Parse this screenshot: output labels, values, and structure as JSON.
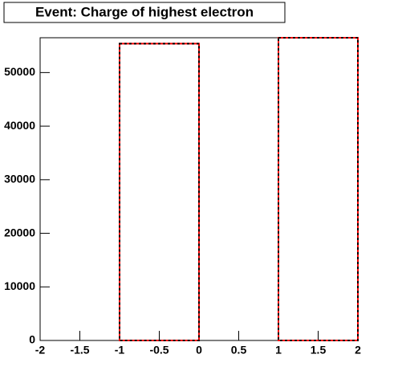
{
  "chart_data": {
    "type": "histogram",
    "title": "Event: Charge of highest electron",
    "bins": [
      -2,
      -1,
      0,
      1,
      2
    ],
    "series": [
      {
        "color": "#ff0000",
        "dash": false,
        "values": [
          0,
          55400,
          0,
          56500
        ]
      },
      {
        "color": "#000000",
        "dash": true,
        "values": [
          0,
          55400,
          0,
          56500
        ]
      }
    ],
    "xlim": [
      -2,
      2
    ],
    "xticks": [
      -2,
      -1.5,
      -1,
      -0.5,
      0,
      0.5,
      1,
      1.5,
      2
    ],
    "ylim": [
      0,
      56500
    ],
    "yticks": [
      0,
      10000,
      20000,
      30000,
      40000,
      50000
    ]
  }
}
